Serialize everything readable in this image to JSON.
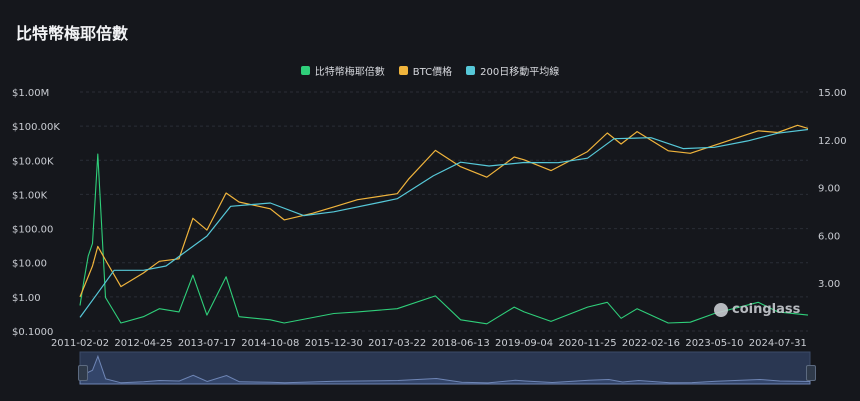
{
  "header": {
    "title": "比特幣梅耶倍數"
  },
  "watermark": {
    "text": "coinglass"
  },
  "colors": {
    "mayer": "#2fcf7a",
    "price": "#f0b43c",
    "ma200": "#56c8d8",
    "grid": "#2a2e36",
    "navigator_fill": "#2a3752",
    "navigator_line": "#6f86b6"
  },
  "chart_data": {
    "type": "line",
    "title": "比特幣梅耶倍數",
    "x_tick_labels": [
      "2011-02-02",
      "2012-04-25",
      "2013-07-17",
      "2014-10-08",
      "2015-12-30",
      "2017-03-22",
      "2018-06-13",
      "2019-09-04",
      "2020-11-25",
      "2022-02-16",
      "2023-05-10",
      "2024-07-31"
    ],
    "y_left_scale": "log",
    "y_left_tick_labels": [
      "$1.00M",
      "$100.00K",
      "$10.00K",
      "$1.00K",
      "$100.00",
      "$10.00",
      "$1.00",
      "$0.1000"
    ],
    "y_left_ticks": [
      1000000,
      100000,
      10000,
      1000,
      100,
      10,
      1,
      0.1
    ],
    "y_right_tick_labels": [
      "15.00",
      "12.00",
      "9.00",
      "6.00",
      "3.00"
    ],
    "y_right_ticks": [
      15,
      12,
      9,
      6,
      3
    ],
    "y_right_range": [
      0,
      15
    ],
    "legend": [
      "比特幣梅耶倍數",
      "BTC價格",
      "200日移動平均線"
    ],
    "legend_position": "top-center",
    "grid": true,
    "series": [
      {
        "name": "BTC價格",
        "axis": "left",
        "x": [
          "2011-02-02",
          "2011-05-01",
          "2011-06-08",
          "2011-08-01",
          "2011-11-18",
          "2012-04-25",
          "2012-08-15",
          "2013-01-01",
          "2013-04-09",
          "2013-07-17",
          "2013-11-30",
          "2014-03-01",
          "2014-10-08",
          "2015-01-14",
          "2015-08-01",
          "2015-12-30",
          "2016-06-15",
          "2017-03-22",
          "2017-06-10",
          "2017-12-17",
          "2018-06-13",
          "2018-12-15",
          "2019-06-26",
          "2019-09-04",
          "2020-03-12",
          "2020-11-25",
          "2021-04-14",
          "2021-07-20",
          "2021-11-10",
          "2022-06-18",
          "2022-11-21",
          "2023-05-10",
          "2024-03-14",
          "2024-07-31",
          "2024-12-17",
          "2025-03-01"
        ],
        "values": [
          1,
          8,
          30,
          12,
          2,
          5,
          11,
          13,
          200,
          90,
          1100,
          600,
          380,
          180,
          280,
          430,
          700,
          1050,
          2800,
          19500,
          6500,
          3200,
          12500,
          10300,
          5000,
          18000,
          63000,
          30000,
          69000,
          19000,
          16000,
          27500,
          73000,
          65000,
          106000,
          86000
        ]
      },
      {
        "name": "200日移動平均線",
        "axis": "left",
        "x": [
          "2011-02-02",
          "2011-06-01",
          "2011-10-01",
          "2012-04-25",
          "2012-10-01",
          "2013-07-17",
          "2014-01-01",
          "2014-10-08",
          "2015-06-01",
          "2015-12-30",
          "2016-12-01",
          "2017-03-22",
          "2017-12-01",
          "2018-06-13",
          "2018-12-31",
          "2019-09-04",
          "2020-05-01",
          "2020-11-25",
          "2021-06-01",
          "2022-02-16",
          "2022-10-01",
          "2023-05-10",
          "2024-01-01",
          "2024-07-31",
          "2025-03-01"
        ],
        "values": [
          0.25,
          1.2,
          6,
          6,
          8,
          60,
          450,
          560,
          240,
          310,
          600,
          750,
          3500,
          8800,
          6800,
          8600,
          8500,
          11500,
          43000,
          46000,
          22000,
          24000,
          37000,
          62000,
          80000
        ]
      },
      {
        "name": "比特幣梅耶倍數",
        "axis": "right",
        "x": [
          "2011-02-02",
          "2011-03-01",
          "2011-04-01",
          "2011-05-01",
          "2011-06-08",
          "2011-08-01",
          "2011-11-18",
          "2012-04-25",
          "2012-08-15",
          "2013-01-01",
          "2013-04-09",
          "2013-07-17",
          "2013-11-30",
          "2014-03-01",
          "2014-10-08",
          "2015-01-14",
          "2015-12-30",
          "2016-06-15",
          "2017-03-22",
          "2017-12-17",
          "2018-06-13",
          "2018-12-15",
          "2019-06-26",
          "2019-09-04",
          "2020-03-12",
          "2020-11-25",
          "2021-04-14",
          "2021-07-20",
          "2021-11-10",
          "2022-06-18",
          "2022-11-21",
          "2023-05-10",
          "2024-03-14",
          "2024-07-31",
          "2025-03-01"
        ],
        "values": [
          1.6,
          3.1,
          4.7,
          5.5,
          11.1,
          2.1,
          0.5,
          0.9,
          1.4,
          1.2,
          3.5,
          1.0,
          3.4,
          0.9,
          0.7,
          0.5,
          1.1,
          1.2,
          1.4,
          2.2,
          0.7,
          0.45,
          1.5,
          1.2,
          0.6,
          1.5,
          1.8,
          0.8,
          1.4,
          0.5,
          0.55,
          1.1,
          1.8,
          1.2,
          1.0
        ]
      }
    ],
    "navigator": {
      "series": "比特幣梅耶倍數"
    }
  }
}
